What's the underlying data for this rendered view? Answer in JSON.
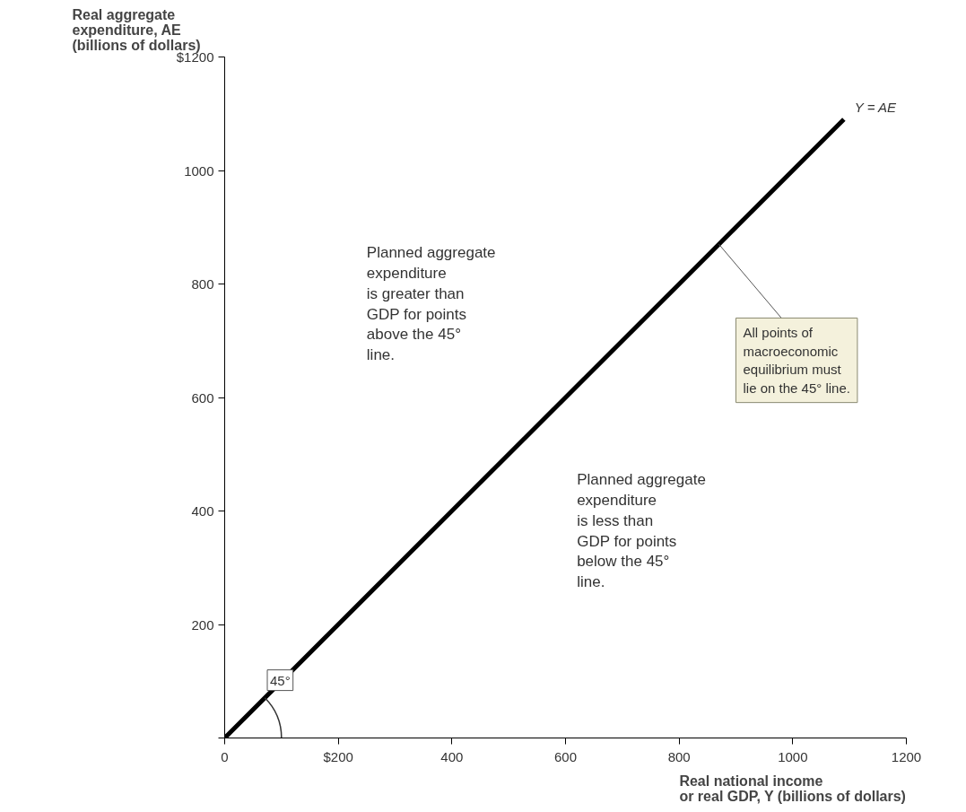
{
  "chart_data": {
    "type": "line",
    "xlabel": "Real national income\nor real GDP, Y (billions of dollars)",
    "ylabel": "Real aggregate\nexpenditure, AE\n(billions of dollars)",
    "x": [
      0,
      1090
    ],
    "series": [
      {
        "color": "#000000",
        "values": [
          0,
          1090
        ]
      }
    ],
    "xlim": [
      0,
      1200
    ],
    "ylim": [
      0,
      1200
    ],
    "xticks": [
      {
        "value": 0,
        "label": "0"
      },
      {
        "value": 200,
        "label": "$200"
      },
      400,
      600,
      800,
      1000,
      1200
    ],
    "yticks": [
      {
        "value": 0,
        "label": null
      },
      200,
      400,
      600,
      800,
      1000,
      {
        "value": 1200,
        "label": "$1200"
      }
    ],
    "grid": false,
    "marker": "none",
    "line_style": "solid",
    "annotations": [
      {
        "text": "Y = AE",
        "x": 1090,
        "y": 1090
      },
      {
        "text": "All points of\nmacroeconomic\nequilibrium must\nlie on the 45° line.",
        "x": 870,
        "y": 870
      },
      "Planned aggregate\nexpenditure\nis greater than\nGDP for points\nabove the 45°\nline.",
      "Planned aggregate\nexpenditure\nis less than\nGDP for points\nbelow the 45°\nline.",
      "45°"
    ]
  }
}
